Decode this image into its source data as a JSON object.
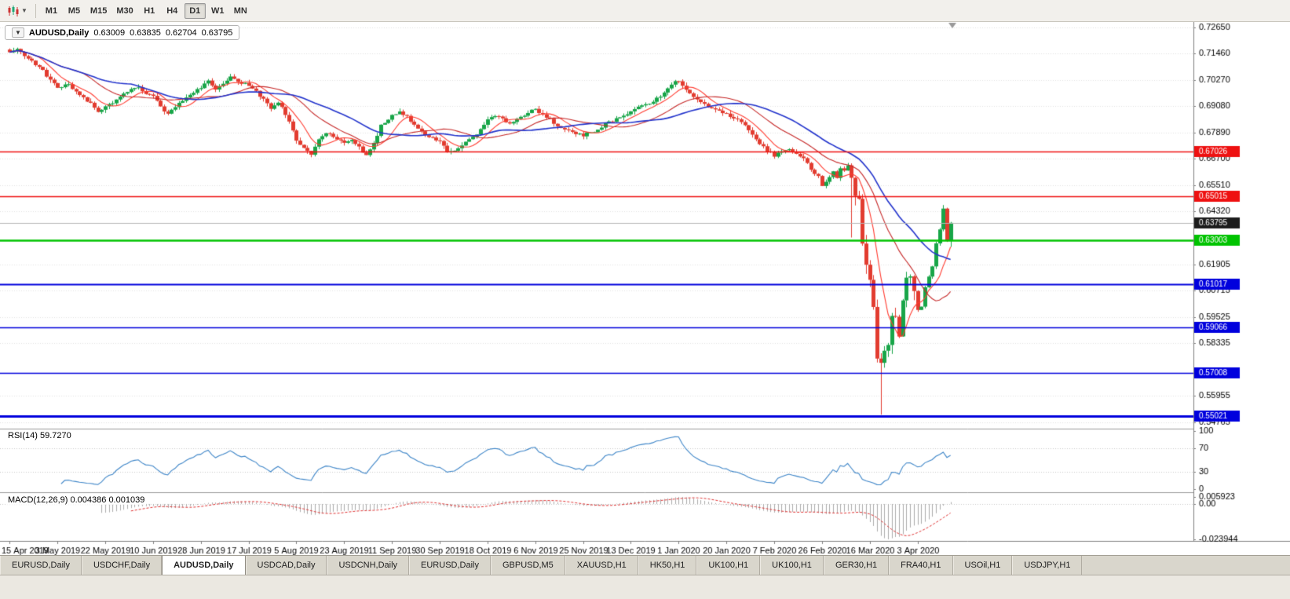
{
  "toolbar": {
    "timeframes": [
      "M1",
      "M5",
      "M15",
      "M30",
      "H1",
      "H4",
      "D1",
      "W1",
      "MN"
    ],
    "active_timeframe": "D1"
  },
  "chart_header": {
    "collapse_icon": "▼",
    "symbol_period": "AUDUSD,Daily",
    "open": "0.63009",
    "high": "0.63835",
    "low": "0.62704",
    "close": "0.63795"
  },
  "price_axis": {
    "ticks": [
      "0.72650",
      "0.71460",
      "0.70270",
      "0.69080",
      "0.67890",
      "0.66700",
      "0.65510",
      "0.64320",
      "0.61905",
      "0.60715",
      "0.59525",
      "0.58335",
      "0.55955",
      "0.54765"
    ]
  },
  "price_tags": [
    {
      "label": "0.67026",
      "value": 0.67026,
      "color": "#ee1111",
      "type": "resistance-line",
      "line_width": 1.6
    },
    {
      "label": "0.65015",
      "value": 0.65015,
      "color": "#ee1111",
      "type": "resistance-line",
      "line_width": 1.6
    },
    {
      "label": "0.63795",
      "value": 0.63795,
      "color": "#1c1c1c",
      "type": "bid-price-line",
      "line_width": 1
    },
    {
      "label": "0.63003",
      "value": 0.63003,
      "color": "#00c300",
      "type": "support-line",
      "line_width": 2.4
    },
    {
      "label": "0.61017",
      "value": 0.61017,
      "color": "#0000dd",
      "type": "support-line",
      "line_width": 2
    },
    {
      "label": "0.59066",
      "value": 0.59066,
      "color": "#0000dd",
      "type": "support-line",
      "line_width": 1.6
    },
    {
      "label": "0.57008",
      "value": 0.57008,
      "color": "#0000dd",
      "type": "support-line",
      "line_width": 1.6
    },
    {
      "label": "0.55021",
      "value": 0.55021,
      "color": "#0000dd",
      "type": "support-line",
      "line_width": 3
    }
  ],
  "time_axis": [
    "15 Apr 2019",
    "3 May 2019",
    "22 May 2019",
    "10 Jun 2019",
    "28 Jun 2019",
    "17 Jul 2019",
    "5 Aug 2019",
    "23 Aug 2019",
    "11 Sep 2019",
    "30 Sep 2019",
    "18 Oct 2019",
    "6 Nov 2019",
    "25 Nov 2019",
    "13 Dec 2019",
    "1 Jan 2020",
    "20 Jan 2020",
    "7 Feb 2020",
    "26 Feb 2020",
    "16 Mar 2020",
    "3 Apr 2020"
  ],
  "rsi_panel": {
    "name": "RSI(14)",
    "value": "59.7270",
    "axis": [
      "100",
      "70",
      "30",
      "0"
    ],
    "level_lines": [
      70,
      30
    ]
  },
  "macd_panel": {
    "name": "MACD(12,26,9)",
    "main_value": "0.004386",
    "signal_value": "0.001039",
    "axis": [
      "0.005923",
      "0.00",
      "-0.023944"
    ]
  },
  "tabs": [
    "EURUSD,Daily",
    "USDCHF,Daily",
    "AUDUSD,Daily",
    "USDCAD,Daily",
    "USDCNH,Daily",
    "EURUSD,Daily",
    "GBPUSD,M5",
    "XAUUSD,H1",
    "HK50,H1",
    "UK100,H1",
    "UK100,H1",
    "GER30,H1",
    "FRA40,H1",
    "USOil,H1",
    "USDJPY,H1"
  ],
  "active_tab": "AUDUSD,Daily",
  "chart_data": {
    "main": {
      "type": "candlestick",
      "symbol": "AUDUSD",
      "period": "Daily",
      "x_range": [
        "15 Apr 2019",
        "17 Apr 2020"
      ],
      "ylim": [
        0.545,
        0.729
      ],
      "candle_count": 257,
      "last_candle": {
        "open": 0.63009,
        "high": 0.63835,
        "low": 0.62704,
        "close": 0.63795
      },
      "close_waypoints": [
        [
          0,
          0.715
        ],
        [
          2,
          0.7168
        ],
        [
          5,
          0.7122
        ],
        [
          8,
          0.7088
        ],
        [
          11,
          0.7028
        ],
        [
          13,
          0.6996
        ],
        [
          16,
          0.7004
        ],
        [
          19,
          0.6958
        ],
        [
          22,
          0.6922
        ],
        [
          24,
          0.688
        ],
        [
          26,
          0.6902
        ],
        [
          29,
          0.6936
        ],
        [
          32,
          0.6975
        ],
        [
          35,
          0.6992
        ],
        [
          37,
          0.6964
        ],
        [
          39,
          0.6953
        ],
        [
          41,
          0.6904
        ],
        [
          43,
          0.6872
        ],
        [
          46,
          0.6921
        ],
        [
          49,
          0.6962
        ],
        [
          52,
          0.6996
        ],
        [
          54,
          0.7021
        ],
        [
          56,
          0.6986
        ],
        [
          58,
          0.7006
        ],
        [
          60,
          0.704
        ],
        [
          62,
          0.7016
        ],
        [
          65,
          0.7004
        ],
        [
          67,
          0.6972
        ],
        [
          69,
          0.6941
        ],
        [
          71,
          0.6896
        ],
        [
          73,
          0.6929
        ],
        [
          75,
          0.6872
        ],
        [
          77,
          0.6801
        ],
        [
          78,
          0.6756
        ],
        [
          80,
          0.6721
        ],
        [
          82,
          0.6686
        ],
        [
          84,
          0.6759
        ],
        [
          86,
          0.6791
        ],
        [
          88,
          0.6766
        ],
        [
          91,
          0.6741
        ],
        [
          93,
          0.6756
        ],
        [
          95,
          0.6721
        ],
        [
          97,
          0.6686
        ],
        [
          99,
          0.6736
        ],
        [
          101,
          0.6821
        ],
        [
          103,
          0.6851
        ],
        [
          104,
          0.6866
        ],
        [
          106,
          0.6886
        ],
        [
          108,
          0.6861
        ],
        [
          110,
          0.6826
        ],
        [
          112,
          0.6791
        ],
        [
          114,
          0.6771
        ],
        [
          116,
          0.6751
        ],
        [
          117,
          0.6756
        ],
        [
          119,
          0.6701
        ],
        [
          121,
          0.6706
        ],
        [
          123,
          0.6726
        ],
        [
          125,
          0.6761
        ],
        [
          127,
          0.6776
        ],
        [
          129,
          0.6821
        ],
        [
          130,
          0.6846
        ],
        [
          132,
          0.6861
        ],
        [
          134,
          0.6851
        ],
        [
          136,
          0.6831
        ],
        [
          138,
          0.6846
        ],
        [
          140,
          0.6871
        ],
        [
          143,
          0.6896
        ],
        [
          145,
          0.6866
        ],
        [
          147,
          0.6846
        ],
        [
          149,
          0.6821
        ],
        [
          151,
          0.6806
        ],
        [
          153,
          0.6791
        ],
        [
          156,
          0.6776
        ],
        [
          158,
          0.6791
        ],
        [
          160,
          0.6801
        ],
        [
          162,
          0.6826
        ],
        [
          164,
          0.6841
        ],
        [
          166,
          0.6856
        ],
        [
          169,
          0.6881
        ],
        [
          171,
          0.6901
        ],
        [
          173,
          0.6916
        ],
        [
          175,
          0.6931
        ],
        [
          177,
          0.6951
        ],
        [
          179,
          0.6986
        ],
        [
          181,
          0.7016
        ],
        [
          182,
          0.7023
        ],
        [
          184,
          0.6986
        ],
        [
          186,
          0.6951
        ],
        [
          188,
          0.6931
        ],
        [
          190,
          0.6906
        ],
        [
          192,
          0.6891
        ],
        [
          195,
          0.6871
        ],
        [
          197,
          0.6856
        ],
        [
          199,
          0.6841
        ],
        [
          201,
          0.6801
        ],
        [
          203,
          0.6761
        ],
        [
          205,
          0.6721
        ],
        [
          208,
          0.6681
        ],
        [
          210,
          0.6706
        ],
        [
          212,
          0.6716
        ],
        [
          214,
          0.6691
        ],
        [
          216,
          0.6676
        ],
        [
          218,
          0.6616
        ],
        [
          220,
          0.6591
        ],
        [
          221,
          0.6547
        ],
        [
          223,
          0.6586
        ],
        [
          224,
          0.6613
        ],
        [
          225,
          0.6584
        ],
        [
          226,
          0.6626
        ],
        [
          227,
          0.6617
        ],
        [
          228,
          0.6639
        ],
        [
          229,
          0.6583
        ],
        [
          230,
          0.6503
        ],
        [
          231,
          0.6489
        ],
        [
          232,
          0.6286
        ],
        [
          233,
          0.6189
        ],
        [
          234,
          0.612
        ],
        [
          235,
          0.5998
        ],
        [
          236,
          0.5765
        ],
        [
          237,
          0.5744
        ],
        [
          238,
          0.58
        ],
        [
          239,
          0.5826
        ],
        [
          240,
          0.5957
        ],
        [
          241,
          0.5955
        ],
        [
          242,
          0.5866
        ],
        [
          243,
          0.6028
        ],
        [
          244,
          0.6131
        ],
        [
          245,
          0.6135
        ],
        [
          246,
          0.607
        ],
        [
          247,
          0.5985
        ],
        [
          248,
          0.5998
        ],
        [
          249,
          0.6087
        ],
        [
          250,
          0.6136
        ],
        [
          251,
          0.6183
        ],
        [
          252,
          0.6287
        ],
        [
          253,
          0.6351
        ],
        [
          254,
          0.6445
        ],
        [
          255,
          0.6301
        ],
        [
          256,
          0.63795
        ]
      ],
      "wick_spikes": [
        {
          "index": 229,
          "low": 0.6313
        },
        {
          "index": 237,
          "low": 0.551
        },
        {
          "index": 254,
          "high": 0.646
        }
      ],
      "horizontal_lines": [
        0.67026,
        0.65015,
        0.63003,
        0.61017,
        0.59066,
        0.57008,
        0.55021
      ],
      "moving_averages": [
        {
          "period": 8,
          "color": "#ff3b30",
          "width": 1.1
        },
        {
          "period": 21,
          "color": "#c62828",
          "width": 1.1
        },
        {
          "period": 34,
          "color": "#2233cc",
          "width": 1.6
        }
      ],
      "style": {
        "bull": "#17a548",
        "bear": "#e23b2f",
        "grid": "#e2e2e2",
        "bid_line": "#b6b6b6",
        "axis_line": "#808080",
        "level_line": "#c8c8c8"
      }
    },
    "rsi": {
      "type": "line",
      "indicator": "RSI",
      "period": 14,
      "last_value": 59.727,
      "scale": [
        0,
        100
      ],
      "levels": [
        70,
        30
      ],
      "color": "#3d85c8"
    },
    "macd": {
      "type": "bar",
      "indicator": "MACD",
      "fast": 12,
      "slow": 26,
      "signal": 9,
      "last_main": 0.004386,
      "last_signal": 0.001039,
      "axis_max": 0.005923,
      "axis_min": -0.023944,
      "bar_color": "#ababab",
      "signal_color": "#e03131"
    }
  }
}
